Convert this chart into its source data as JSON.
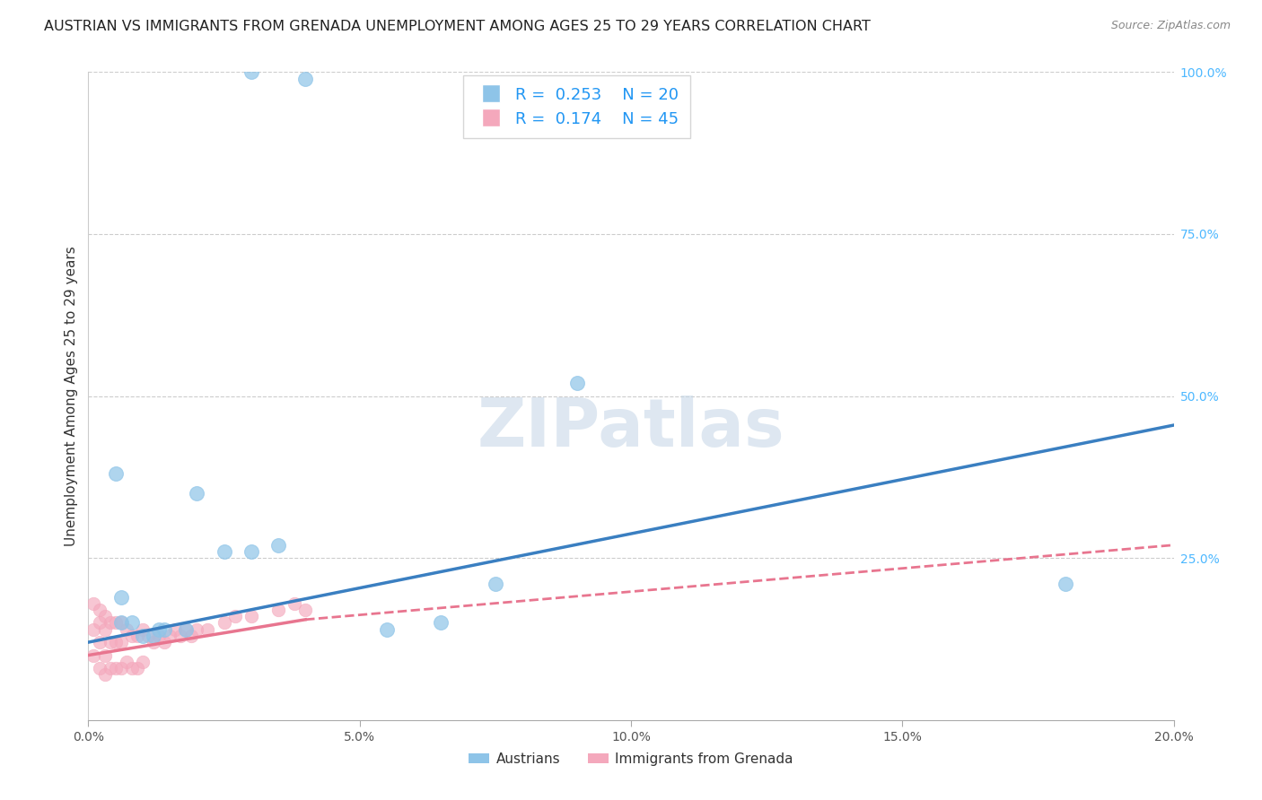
{
  "title": "AUSTRIAN VS IMMIGRANTS FROM GRENADA UNEMPLOYMENT AMONG AGES 25 TO 29 YEARS CORRELATION CHART",
  "source": "Source: ZipAtlas.com",
  "ylabel": "Unemployment Among Ages 25 to 29 years",
  "xlim": [
    0.0,
    0.2
  ],
  "ylim": [
    0.0,
    1.0
  ],
  "xtick_labels": [
    "0.0%",
    "5.0%",
    "10.0%",
    "15.0%",
    "20.0%"
  ],
  "xtick_vals": [
    0.0,
    0.05,
    0.1,
    0.15,
    0.2
  ],
  "ytick_labels": [
    "100.0%",
    "75.0%",
    "50.0%",
    "25.0%"
  ],
  "ytick_vals": [
    1.0,
    0.75,
    0.5,
    0.25
  ],
  "watermark": "ZIPatlas",
  "legend_blue_R": "0.253",
  "legend_blue_N": "20",
  "legend_pink_R": "0.174",
  "legend_pink_N": "45",
  "blue_color": "#8ec4e8",
  "pink_color": "#f4a8bc",
  "blue_line_color": "#3a7fc1",
  "pink_line_color": "#e8758f",
  "austrians_x": [
    0.03,
    0.04,
    0.005,
    0.006,
    0.006,
    0.008,
    0.01,
    0.012,
    0.013,
    0.014,
    0.018,
    0.02,
    0.025,
    0.03,
    0.035,
    0.055,
    0.065,
    0.075,
    0.09,
    0.18
  ],
  "austrians_y": [
    1.0,
    0.99,
    0.38,
    0.19,
    0.15,
    0.15,
    0.13,
    0.13,
    0.14,
    0.14,
    0.14,
    0.35,
    0.26,
    0.26,
    0.27,
    0.14,
    0.15,
    0.21,
    0.52,
    0.21
  ],
  "grenada_x": [
    0.001,
    0.001,
    0.001,
    0.002,
    0.002,
    0.002,
    0.002,
    0.003,
    0.003,
    0.003,
    0.003,
    0.004,
    0.004,
    0.004,
    0.005,
    0.005,
    0.005,
    0.006,
    0.006,
    0.006,
    0.007,
    0.007,
    0.008,
    0.008,
    0.009,
    0.009,
    0.01,
    0.01,
    0.011,
    0.012,
    0.013,
    0.014,
    0.015,
    0.016,
    0.017,
    0.018,
    0.019,
    0.02,
    0.022,
    0.025,
    0.027,
    0.03,
    0.035,
    0.038,
    0.04
  ],
  "grenada_y": [
    0.18,
    0.14,
    0.1,
    0.17,
    0.15,
    0.12,
    0.08,
    0.16,
    0.14,
    0.1,
    0.07,
    0.15,
    0.12,
    0.08,
    0.15,
    0.12,
    0.08,
    0.15,
    0.12,
    0.08,
    0.14,
    0.09,
    0.13,
    0.08,
    0.13,
    0.08,
    0.14,
    0.09,
    0.13,
    0.12,
    0.13,
    0.12,
    0.13,
    0.14,
    0.13,
    0.14,
    0.13,
    0.14,
    0.14,
    0.15,
    0.16,
    0.16,
    0.17,
    0.18,
    0.17
  ],
  "blue_line_x0": 0.0,
  "blue_line_y0": 0.12,
  "blue_line_x1": 0.2,
  "blue_line_y1": 0.455,
  "pink_line_solid_x0": 0.0,
  "pink_line_solid_y0": 0.1,
  "pink_line_solid_x1": 0.04,
  "pink_line_solid_y1": 0.155,
  "pink_line_dash_x0": 0.04,
  "pink_line_dash_y0": 0.155,
  "pink_line_dash_x1": 0.2,
  "pink_line_dash_y1": 0.27,
  "background_color": "#ffffff",
  "grid_color": "#cccccc"
}
